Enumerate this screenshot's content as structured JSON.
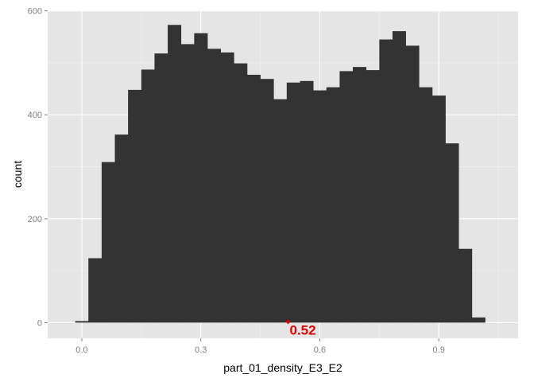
{
  "chart_data": {
    "type": "bar",
    "xlabel": "part_01_density_E3_E2",
    "ylabel": "count",
    "xlim": [
      -0.086,
      1.1
    ],
    "ylim": [
      -30,
      601
    ],
    "x_ticks": [
      0.0,
      0.3,
      0.6,
      0.9
    ],
    "x_tick_labels": [
      "0.0",
      "0.3",
      "0.6",
      "0.9"
    ],
    "y_ticks": [
      0,
      200,
      400,
      600
    ],
    "y_tick_labels": [
      "0",
      "200",
      "400",
      "600"
    ],
    "bin_width": 0.0333,
    "x": [
      0.0,
      0.0333,
      0.0667,
      0.1,
      0.1333,
      0.1667,
      0.2,
      0.2333,
      0.2667,
      0.3,
      0.3333,
      0.3667,
      0.4,
      0.4333,
      0.4667,
      0.5,
      0.5333,
      0.5667,
      0.6,
      0.6333,
      0.6667,
      0.7,
      0.7333,
      0.7667,
      0.8,
      0.8333,
      0.8667,
      0.9,
      0.9333,
      0.9667,
      1.0
    ],
    "values": [
      3,
      124,
      309,
      362,
      448,
      487,
      518,
      573,
      536,
      557,
      527,
      520,
      499,
      477,
      469,
      430,
      462,
      465,
      447,
      453,
      484,
      492,
      486,
      545,
      561,
      533,
      453,
      437,
      345,
      142,
      10
    ],
    "grid": true,
    "legend": "none",
    "colors": {
      "panel": "#e5e5e5",
      "grid": "#ffffff",
      "bar": "#333333",
      "annotation": "#e00000"
    },
    "annotations": [
      {
        "text": "0.52",
        "x": 0.52,
        "y": 0
      }
    ]
  }
}
